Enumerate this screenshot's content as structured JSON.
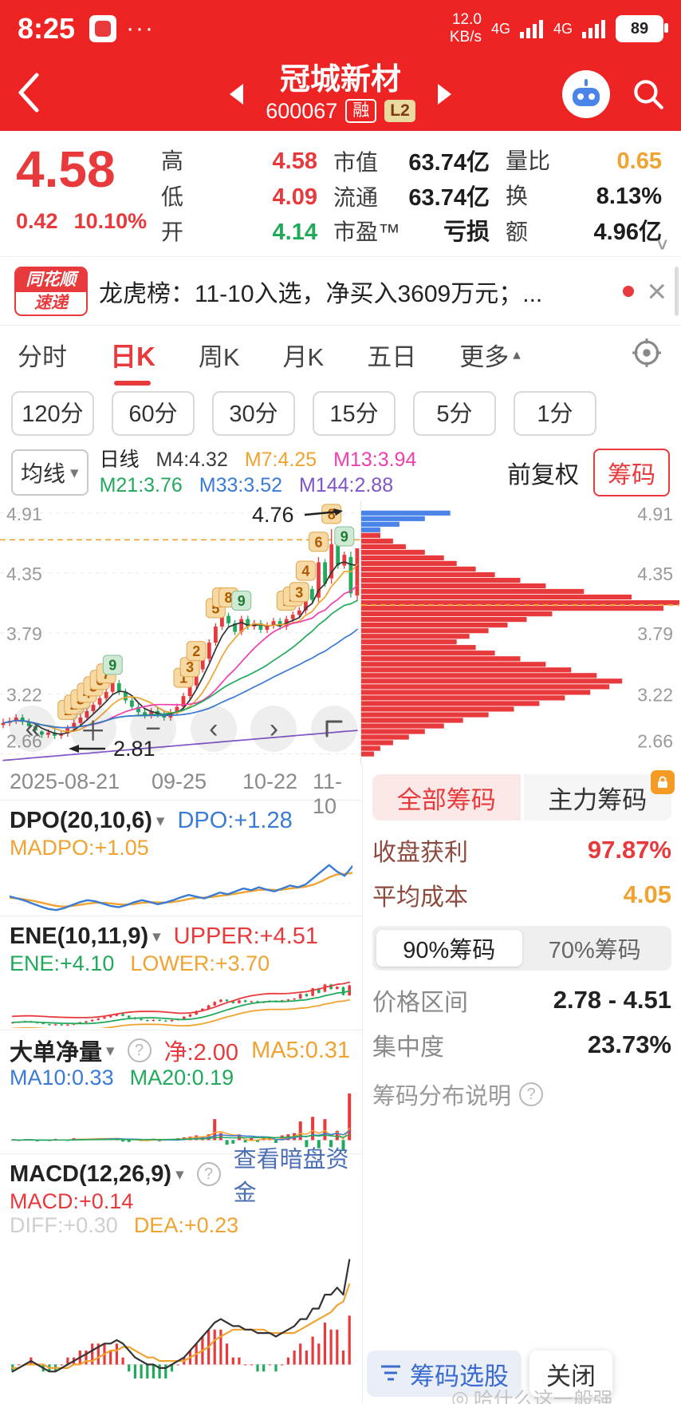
{
  "colors": {
    "header_red": "#ee2424",
    "up_red": "#e8393c",
    "down_green": "#21a95c",
    "orange": "#f0a330",
    "blue": "#3a7bd5",
    "magenta": "#ef3fae",
    "purple": "#7d55c7",
    "link_blue": "#4a6fb5",
    "maroon": "#8d4a3e"
  },
  "icons": {
    "question": "?",
    "close": "×",
    "caret_down": "▾",
    "up_triangle": "▴",
    "chevron_down": "∨",
    "jump_start": "«",
    "plus": "＋",
    "minus": "−",
    "chev_left": "‹",
    "chev_right": "›",
    "watermark": "◎"
  },
  "status_bar": {
    "time": "8:25",
    "dots": "···",
    "speed_value": "12.0",
    "speed_unit": "KB/s",
    "net_label_1": "4G",
    "net_label_2": "4G",
    "battery_level": "89"
  },
  "header": {
    "title": "冠城新材",
    "code": "600067",
    "margin_tag": "融",
    "level_tag": "L2"
  },
  "quote": {
    "price": "4.58",
    "change": "0.42",
    "change_pct": "10.10%",
    "col1": [
      {
        "label": "高",
        "value": "4.58"
      },
      {
        "label": "低",
        "value": "4.09"
      },
      {
        "label": "开",
        "value": "4.14"
      }
    ],
    "col2": [
      {
        "label": "市值",
        "value": "63.74亿"
      },
      {
        "label": "流通",
        "value": "63.74亿"
      },
      {
        "label": "市盈™",
        "value": "亏损"
      }
    ],
    "col3": [
      {
        "label": "量比",
        "value": "0.65"
      },
      {
        "label": "换",
        "value": "8.13%"
      },
      {
        "label": "额",
        "value": "4.96亿"
      }
    ]
  },
  "news": {
    "logo_top": "同花顺",
    "logo_bottom": "速递",
    "text": "龙虎榜：11-10入选，净买入3609万元；..."
  },
  "tabs": {
    "items": [
      "分时",
      "日K",
      "周K",
      "月K",
      "五日"
    ],
    "more_label": "更多"
  },
  "periods": [
    "120分",
    "60分",
    "30分",
    "15分",
    "5分",
    "1分"
  ],
  "ma_bar": {
    "selector_label": "均线",
    "period_label": "日线",
    "m4": "M4:4.32",
    "m7": "M7:4.25",
    "m13": "M13:3.94",
    "m21": "M21:3.76",
    "m33": "M33:3.52",
    "m144": "M144:2.88",
    "adjust_label": "前复权",
    "chip_button": "筹码"
  },
  "dates": [
    "2025-08-21",
    "09-25",
    "10-22",
    "11-10"
  ],
  "chip_panel": {
    "tab_all": "全部筹码",
    "tab_main": "主力筹码",
    "profit_label": "收盘获利",
    "profit_value": "97.87%",
    "cost_label": "平均成本",
    "cost_value": "4.05",
    "seg_90": "90%筹码",
    "seg_70": "70%筹码",
    "range_label": "价格区间",
    "range_value": "2.78 - 4.51",
    "conc_label": "集中度",
    "conc_value": "23.73%",
    "help_label": "筹码分布说明"
  },
  "dpo_panel": {
    "name": "DPO(20,10,6)",
    "v1": "DPO:+1.28",
    "v2": "MADPO:+1.05"
  },
  "ene_panel": {
    "name": "ENE(10,11,9)",
    "upper": "UPPER:+4.51",
    "mid": "ENE:+4.10",
    "lower": "LOWER:+3.70"
  },
  "big_order_panel": {
    "name": "大单净量",
    "net": "净:2.00",
    "ma5": "MA5:0.31",
    "ma10": "MA10:0.33",
    "ma20": "MA20:0.19"
  },
  "macd_panel": {
    "name": "MACD(12,26,9)",
    "link": "查看暗盘资金",
    "macd": "MACD:+0.14",
    "diff": "DIFF:+0.30",
    "dea": "DEA:+0.23"
  },
  "footer": {
    "chip_select": "筹码选股",
    "close": "关闭"
  },
  "watermark": "哈什么这一般强",
  "chart_data": {
    "main": {
      "type": "candlestick",
      "y_ticks": [
        4.91,
        4.35,
        3.79,
        3.22,
        2.66
      ],
      "x_labels": [
        "2025-08-21",
        "09-25",
        "10-22",
        "11-10"
      ],
      "closes": [
        2.95,
        2.97,
        3.0,
        2.96,
        2.92,
        2.88,
        2.84,
        2.86,
        2.83,
        2.85,
        2.9,
        2.95,
        3.0,
        3.06,
        3.12,
        3.18,
        3.24,
        3.32,
        3.24,
        3.16,
        3.1,
        3.05,
        3.02,
        3.06,
        3.03,
        3.0,
        3.05,
        3.1,
        3.2,
        3.3,
        3.45,
        3.55,
        3.7,
        3.85,
        3.95,
        3.88,
        3.8,
        3.92,
        3.85,
        3.88,
        3.82,
        3.86,
        3.9,
        3.85,
        3.92,
        3.96,
        4.0,
        4.2,
        4.1,
        4.45,
        4.25,
        4.62,
        4.42,
        4.52,
        4.16,
        4.58
      ],
      "ohlc_overrides": {
        "0": [
          2.93,
          2.99,
          2.9,
          2.95
        ],
        "6": [
          2.87,
          2.88,
          2.81,
          2.84
        ],
        "49": [
          4.12,
          4.5,
          4.08,
          4.45
        ],
        "51": [
          4.3,
          4.76,
          4.25,
          4.62
        ],
        "54": [
          4.5,
          4.55,
          4.12,
          4.16
        ],
        "55": [
          4.14,
          4.58,
          4.09,
          4.58
        ]
      },
      "dash_line": 4.66,
      "high_note": "4.76",
      "low_note": "2.81",
      "ma": {
        "m4": "#333333",
        "m7": "#f0a330",
        "m13": "#ef3fae",
        "m21": "#21a95c",
        "m33": "#3a7bd5",
        "m144": "#7d55c7"
      },
      "badges": [
        {
          "i": 10,
          "n": "1",
          "c": "o"
        },
        {
          "i": 11,
          "n": "2",
          "c": "o"
        },
        {
          "i": 12,
          "n": "3",
          "c": "o"
        },
        {
          "i": 13,
          "n": "4",
          "c": "o"
        },
        {
          "i": 14,
          "n": "5",
          "c": "o"
        },
        {
          "i": 15,
          "n": "6",
          "c": "o"
        },
        {
          "i": 16,
          "n": "7",
          "c": "o"
        },
        {
          "i": 17,
          "n": "9",
          "c": "g"
        },
        {
          "i": 28,
          "n": "1",
          "c": "o"
        },
        {
          "i": 29,
          "n": "3",
          "c": "o"
        },
        {
          "i": 30,
          "n": "2",
          "c": "o"
        },
        {
          "i": 33,
          "n": "5",
          "c": "o"
        },
        {
          "i": 34,
          "n": "6",
          "c": "o"
        },
        {
          "i": 35,
          "n": "8",
          "c": "o"
        },
        {
          "i": 37,
          "n": "9",
          "c": "g"
        },
        {
          "i": 44,
          "n": "1",
          "c": "o"
        },
        {
          "i": 45,
          "n": "2",
          "c": "o"
        },
        {
          "i": 46,
          "n": "3",
          "c": "o"
        },
        {
          "i": 47,
          "n": "4",
          "c": "o"
        },
        {
          "i": 49,
          "n": "6",
          "c": "o"
        },
        {
          "i": 51,
          "n": "8",
          "c": "o"
        },
        {
          "i": 53,
          "n": "9",
          "c": "g"
        }
      ]
    },
    "profile": {
      "type": "hbar",
      "top": 4.91,
      "bottom": 2.66,
      "blue_rows": 4,
      "avg_cost": 4.05,
      "y_ticks": [
        4.91,
        4.35,
        3.79,
        3.22,
        2.66
      ],
      "widths": [
        0.28,
        0.2,
        0.12,
        0.06,
        0.06,
        0.1,
        0.14,
        0.2,
        0.26,
        0.3,
        0.36,
        0.42,
        0.5,
        0.58,
        0.7,
        0.85,
        1.0,
        0.95,
        0.6,
        0.52,
        0.46,
        0.4,
        0.34,
        0.3,
        0.36,
        0.42,
        0.5,
        0.58,
        0.66,
        0.74,
        0.82,
        0.78,
        0.72,
        0.64,
        0.56,
        0.48,
        0.4,
        0.32,
        0.26,
        0.2,
        0.15,
        0.1,
        0.06,
        0.04
      ]
    },
    "dpo": {
      "type": "line",
      "dpo": [
        0.25,
        0.18,
        0.1,
        0.0,
        -0.1,
        -0.18,
        -0.22,
        -0.15,
        -0.05,
        0.05,
        0.12,
        0.08,
        0.0,
        -0.08,
        -0.12,
        -0.05,
        0.05,
        0.12,
        0.06,
        -0.02,
        0.04,
        0.12,
        0.22,
        0.3,
        0.24,
        0.18,
        0.28,
        0.38,
        0.32,
        0.42,
        0.52,
        0.46,
        0.56,
        0.48,
        0.42,
        0.52,
        0.62,
        0.56,
        0.66,
        0.88,
        1.1,
        1.32,
        1.1,
        0.95,
        1.28
      ],
      "madpo": [
        0.2,
        0.18,
        0.14,
        0.1,
        0.04,
        -0.02,
        -0.08,
        -0.1,
        -0.08,
        -0.04,
        0.0,
        0.03,
        0.03,
        0.01,
        -0.02,
        -0.03,
        -0.01,
        0.03,
        0.05,
        0.04,
        0.04,
        0.06,
        0.1,
        0.16,
        0.2,
        0.21,
        0.23,
        0.27,
        0.3,
        0.34,
        0.39,
        0.43,
        0.47,
        0.48,
        0.47,
        0.48,
        0.52,
        0.55,
        0.58,
        0.65,
        0.76,
        0.9,
        1.0,
        1.02,
        1.05
      ]
    },
    "ene": {
      "type": "candlestick-bands",
      "band_pct": 0.09
    },
    "big_order": {
      "type": "bar",
      "values": [
        0.02,
        -0.03,
        0.04,
        0.02,
        -0.05,
        0.03,
        -0.04,
        0.05,
        0.02,
        -0.03,
        0.08,
        0.06,
        0.05,
        0.07,
        0.06,
        0.08,
        0.07,
        0.1,
        -0.06,
        -0.08,
        0.05,
        -0.04,
        0.03,
        0.06,
        -0.05,
        0.04,
        0.05,
        0.08,
        0.12,
        0.15,
        0.2,
        0.15,
        0.25,
        0.9,
        0.3,
        -0.2,
        -0.15,
        0.25,
        -0.1,
        0.12,
        -0.08,
        0.1,
        0.15,
        -0.12,
        0.2,
        0.25,
        0.3,
        0.8,
        -0.3,
        1.0,
        -0.35,
        0.9,
        -0.3,
        0.4,
        -0.45,
        2.0
      ]
    },
    "macd": {
      "type": "macd",
      "diff": [
        -0.02,
        -0.01,
        0.0,
        0.01,
        0.0,
        -0.01,
        -0.02,
        -0.02,
        -0.01,
        0.0,
        0.01,
        0.02,
        0.03,
        0.04,
        0.05,
        0.06,
        0.06,
        0.07,
        0.06,
        0.04,
        0.02,
        0.01,
        0.0,
        0.0,
        -0.01,
        -0.01,
        0.0,
        0.01,
        0.02,
        0.04,
        0.06,
        0.08,
        0.1,
        0.12,
        0.13,
        0.12,
        0.11,
        0.11,
        0.1,
        0.1,
        0.09,
        0.09,
        0.09,
        0.08,
        0.09,
        0.1,
        0.11,
        0.13,
        0.13,
        0.16,
        0.16,
        0.2,
        0.2,
        0.22,
        0.2,
        0.3
      ],
      "dea": [
        -0.01,
        -0.01,
        0.0,
        0.0,
        0.0,
        0.0,
        -0.01,
        -0.01,
        -0.01,
        -0.01,
        0.0,
        0.0,
        0.01,
        0.01,
        0.02,
        0.03,
        0.04,
        0.04,
        0.05,
        0.05,
        0.04,
        0.03,
        0.02,
        0.02,
        0.01,
        0.01,
        0.01,
        0.01,
        0.01,
        0.02,
        0.03,
        0.04,
        0.05,
        0.07,
        0.08,
        0.09,
        0.1,
        0.1,
        0.1,
        0.1,
        0.1,
        0.1,
        0.09,
        0.09,
        0.09,
        0.09,
        0.09,
        0.1,
        0.11,
        0.12,
        0.13,
        0.14,
        0.15,
        0.17,
        0.18,
        0.23
      ]
    }
  }
}
